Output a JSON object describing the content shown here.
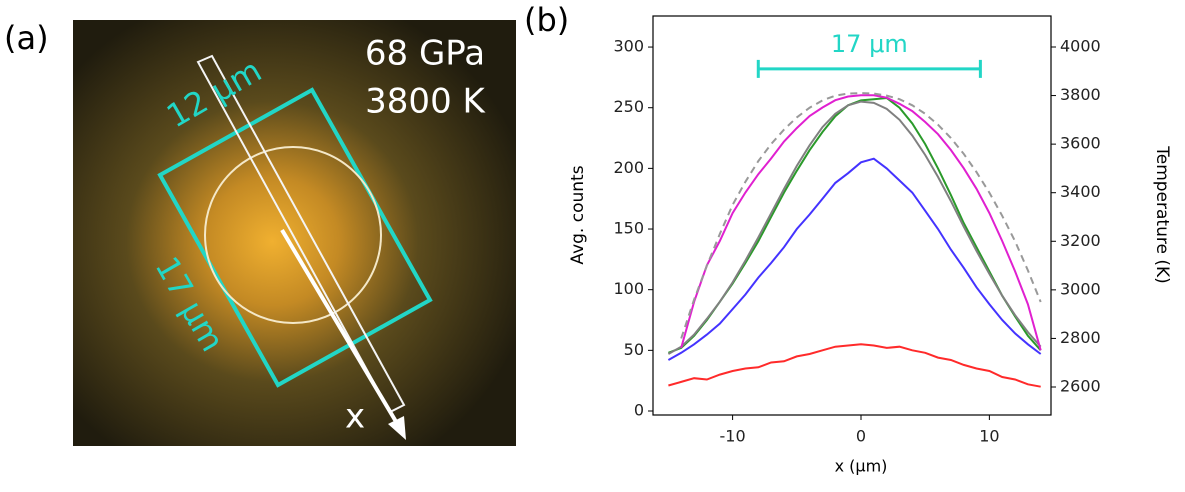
{
  "panel_a": {
    "label": "(a)",
    "pressure": "68 GPa",
    "temperature": "3800 K",
    "width_label": "12 μm",
    "length_label": "17 μm",
    "axis_label": "x"
  },
  "panel_b": {
    "label": "(b)"
  },
  "chart_data": {
    "type": "line",
    "x_label": "x (μm)",
    "y_label": "Avg. counts",
    "y2_label": "Temperature (K)",
    "x": [
      -15,
      -14,
      -13,
      -12,
      -11,
      -10,
      -9,
      -8,
      -7,
      -6,
      -5,
      -4,
      -3,
      -2,
      -1,
      0,
      1,
      2,
      3,
      4,
      5,
      6,
      7,
      8,
      9,
      10,
      11,
      12,
      13,
      14
    ],
    "xlim": [
      -16.2,
      14.8
    ],
    "xticks": [
      -10,
      0,
      10
    ],
    "ylim": [
      -3.3,
      325.6
    ],
    "yticks": [
      0,
      50,
      100,
      150,
      200,
      250,
      300
    ],
    "y2lim": [
      2484.7,
      4127.6
    ],
    "y2ticks": [
      2600,
      2800,
      3000,
      3200,
      3400,
      3600,
      3800,
      4000
    ],
    "series": [
      {
        "color": "#ff2a2a",
        "linestyle": "solid",
        "values": [
          21,
          24,
          27,
          26,
          30,
          33,
          35,
          36,
          40,
          41,
          45,
          47,
          50,
          53,
          54,
          55,
          54,
          52,
          53,
          50,
          48,
          44,
          42,
          38,
          35,
          33,
          28,
          26,
          22,
          20
        ]
      },
      {
        "color": "#4433ff",
        "linestyle": "solid",
        "values": [
          42,
          48,
          55,
          63,
          72,
          84,
          96,
          110,
          122,
          135,
          150,
          162,
          175,
          188,
          196,
          205,
          208,
          200,
          190,
          180,
          165,
          150,
          133,
          118,
          102,
          88,
          75,
          64,
          55,
          47
        ]
      },
      {
        "color": "#2a9a2a",
        "linestyle": "solid",
        "values": [
          48,
          52,
          62,
          75,
          90,
          105,
          122,
          140,
          160,
          180,
          198,
          215,
          230,
          243,
          252,
          256,
          257,
          258,
          250,
          237,
          220,
          200,
          178,
          155,
          135,
          115,
          95,
          78,
          62,
          50
        ]
      },
      {
        "color": "#808080",
        "linestyle": "solid",
        "values": [
          47,
          53,
          63,
          76,
          90,
          106,
          124,
          143,
          163,
          183,
          202,
          219,
          234,
          245,
          252,
          255,
          254,
          249,
          240,
          227,
          211,
          193,
          173,
          152,
          132,
          113,
          95,
          79,
          65,
          53
        ]
      },
      {
        "color": "#e020d0",
        "linestyle": "solid",
        "axis": "y2",
        "values": [
          null,
          2761,
          2951,
          3101,
          3201,
          3316,
          3401,
          3476,
          3541,
          3611,
          3666,
          3716,
          3751,
          3781,
          3796,
          3801,
          3801,
          3791,
          3766,
          3736,
          3691,
          3641,
          3576,
          3501,
          3416,
          3316,
          3201,
          3076,
          2941,
          2751
        ]
      },
      {
        "color": "#999999",
        "linestyle": "dashed",
        "axis": "y2",
        "values": [
          null,
          2800,
          2960,
          3100,
          3230,
          3350,
          3445,
          3530,
          3600,
          3660,
          3710,
          3750,
          3780,
          3800,
          3808,
          3810,
          3808,
          3800,
          3785,
          3760,
          3725,
          3680,
          3625,
          3560,
          3485,
          3400,
          3305,
          3200,
          3080,
          2950
        ]
      }
    ],
    "annotation": {
      "text": "17 μm",
      "x": [
        -8,
        9.3
      ],
      "y": 282,
      "color": "#22d6c6"
    }
  }
}
